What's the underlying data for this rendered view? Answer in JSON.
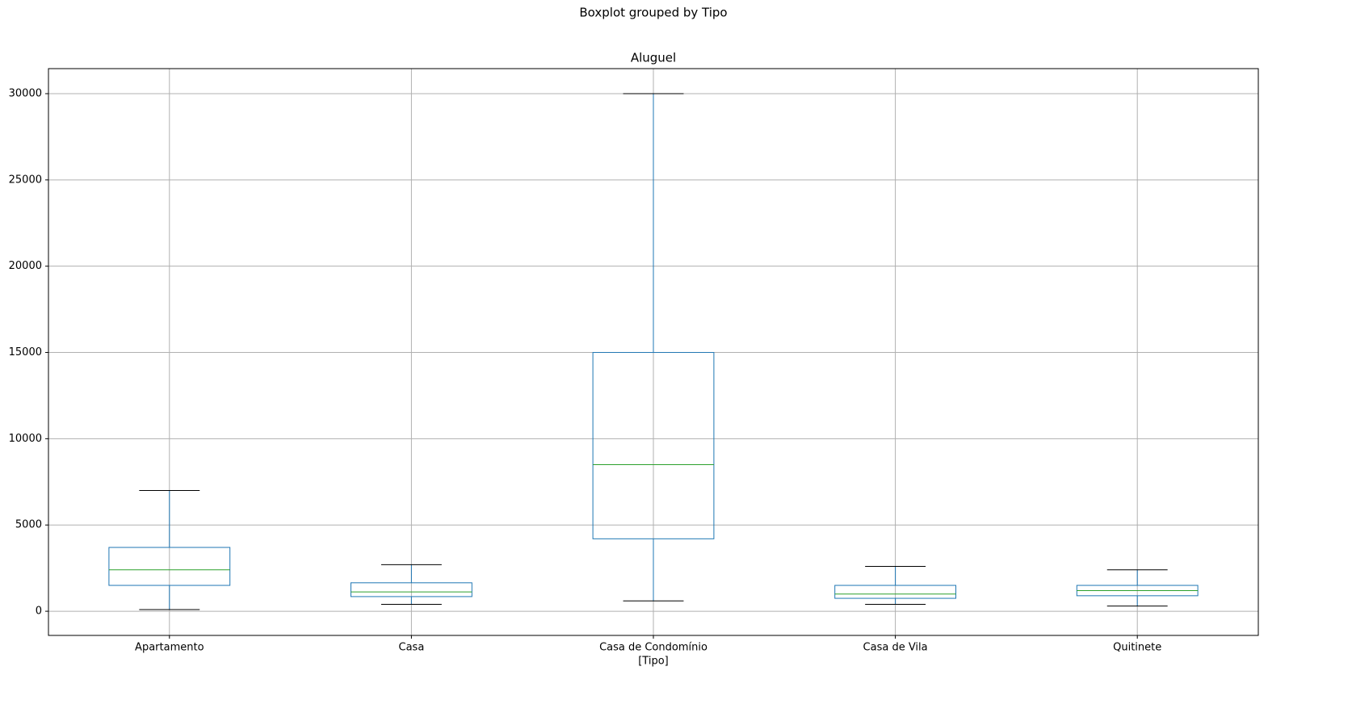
{
  "chart_data": {
    "type": "box",
    "title": "Boxplot grouped by Tipo",
    "subtitle": "Aluguel",
    "x_label": "[Tipo]",
    "categories": [
      "Apartamento",
      "Casa",
      "Casa de Condomínio",
      "Casa de Vila",
      "Quitinete"
    ],
    "whislo": [
      100,
      400,
      600,
      400,
      300
    ],
    "q1": [
      1500,
      850,
      4200,
      750,
      900
    ],
    "median": [
      2400,
      1120,
      8500,
      1000,
      1200
    ],
    "q3": [
      3700,
      1650,
      15000,
      1500,
      1500
    ],
    "whishi": [
      7000,
      2700,
      30000,
      2600,
      2400
    ],
    "box_color": "#1f77b4",
    "median_color": "#2ca02c",
    "cap_color": "#000000",
    "ylim": [
      -1400,
      31450
    ],
    "yticks": [
      0,
      5000,
      10000,
      15000,
      20000,
      25000,
      30000
    ],
    "grid": true
  }
}
